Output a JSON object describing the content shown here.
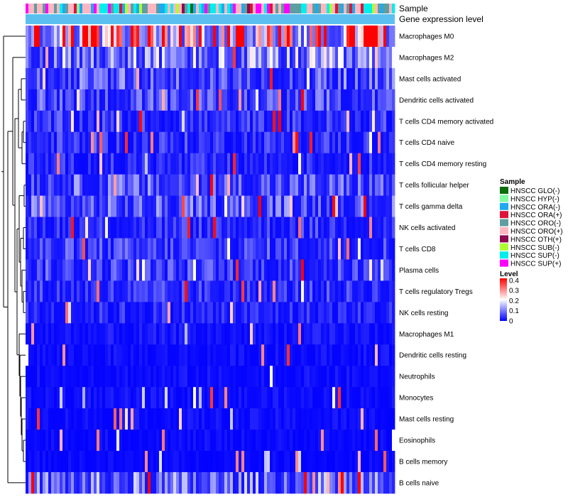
{
  "chart_data": {
    "type": "heatmap",
    "annotation_labels": [
      "Sample",
      "Gene expression level"
    ],
    "rows": [
      "Macrophages M0",
      "Macrophages M2",
      "Mast cells activated",
      "Dendritic cells activated",
      "T cells CD4 memory activated",
      "T cells CD4 naive",
      "T cells CD4 memory resting",
      "T cells follicular helper",
      "T cells gamma delta",
      "NK cells activated",
      "T cells CD8",
      "Plasma cells",
      "T cells regulatory  Tregs",
      "NK cells resting",
      "Macrophages M1",
      "Dendritic cells resting",
      "Neutrophils",
      "Monocytes",
      "Mast cells resting",
      "Eosinophils",
      "B cells memory",
      "B cells naive"
    ],
    "row_mean_levels": [
      0.3,
      0.13,
      0.08,
      0.07,
      0.05,
      0.05,
      0.04,
      0.08,
      0.08,
      0.05,
      0.06,
      0.06,
      0.05,
      0.04,
      0.02,
      0.015,
      0.015,
      0.015,
      0.015,
      0.012,
      0.01,
      0.1
    ],
    "n_samples": 130,
    "sample_legend": {
      "title": "Sample",
      "entries": [
        {
          "label": "HNSCC GLO(-)",
          "color": "#0b6e0b"
        },
        {
          "label": "HNSCC HYP(-)",
          "color": "#7fff9f"
        },
        {
          "label": "HNSCC ORA(-)",
          "color": "#1eaaf0"
        },
        {
          "label": "HNSCC ORA(+)",
          "color": "#dc143c"
        },
        {
          "label": "HNSCC ORO(-)",
          "color": "#5f9ea0"
        },
        {
          "label": "HNSCC ORO(+)",
          "color": "#ffb6c1"
        },
        {
          "label": "HNSCC OTH(+)",
          "color": "#8b0a50"
        },
        {
          "label": "HNSCC SUB(-)",
          "color": "#adff2f"
        },
        {
          "label": "HNSCC SUP(-)",
          "color": "#00eeee"
        },
        {
          "label": "HNSCC SUP(+)",
          "color": "#ff00ff"
        }
      ]
    },
    "level_legend": {
      "title": "Level",
      "ticks": [
        "0.4",
        "0.3",
        "0.2",
        "0.1",
        "0"
      ],
      "tick_values": [
        0.4,
        0.3,
        0.2,
        0.1,
        0
      ],
      "min": 0,
      "max": 0.42,
      "colors": [
        "#0000ff",
        "#ffffff",
        "#ff0000"
      ]
    },
    "gene_expression_color": "#5bc0f0"
  }
}
